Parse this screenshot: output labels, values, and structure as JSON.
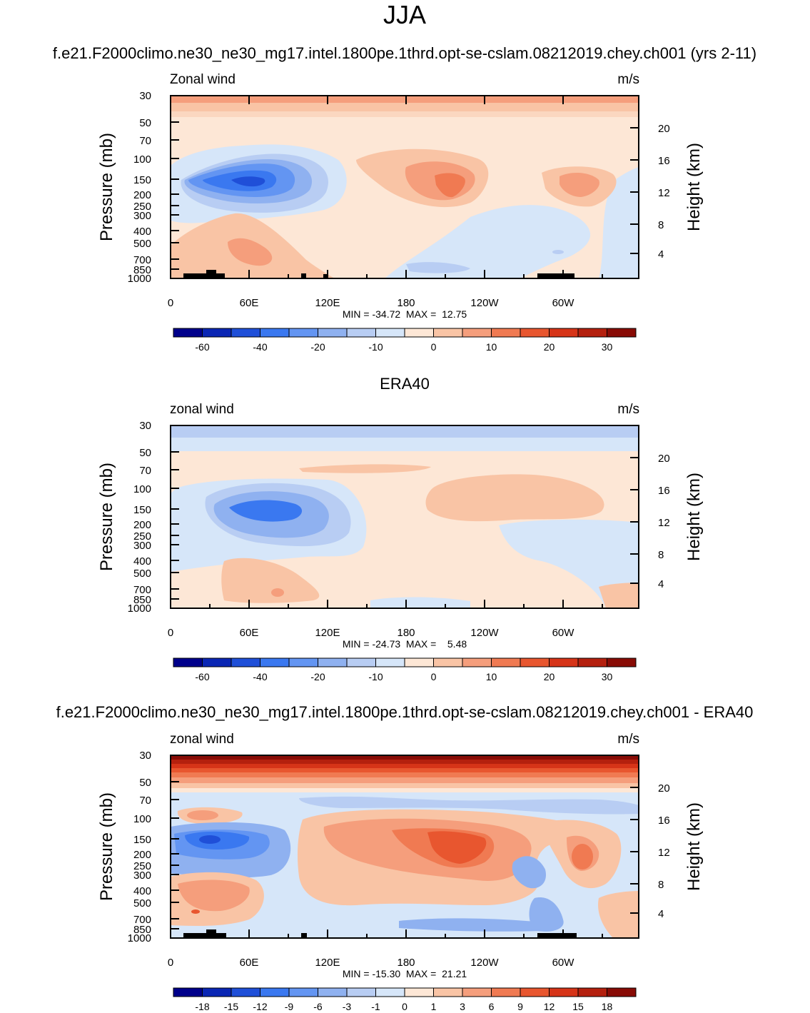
{
  "figure_title": "JJA",
  "colors": {
    "diverging_scale": [
      "#00008b",
      "#0a26b4",
      "#1f4fd8",
      "#3a78f0",
      "#6395f2",
      "#8fb1f0",
      "#b8cdf3",
      "#d6e6f9",
      "#fde7d6",
      "#f9c4a5",
      "#f59e7c",
      "#f07a52",
      "#e8562f",
      "#d63418",
      "#b4200e",
      "#880b05"
    ]
  },
  "chart_data": [
    {
      "type": "heatmap",
      "panel_title": "f.e21.F2000climo.ne30_ne30_mg17.intel.1800pe.1thrd.opt-se-cslam.08212019.chey.ch001 (yrs 2-11)",
      "left_string": "Zonal wind",
      "right_string": "m/s",
      "ylabel": "Pressure (mb)",
      "ylabel_right": "Height (km)",
      "x_ticks": [
        "0",
        "60E",
        "120E",
        "180",
        "120W",
        "60W"
      ],
      "y_ticks": [
        "30",
        "50",
        "70",
        "100",
        "150",
        "200",
        "250",
        "300",
        "400",
        "500",
        "700",
        "850",
        "1000"
      ],
      "y_right_ticks": [
        "20",
        "16",
        "12",
        "8",
        "4"
      ],
      "stats_text": "MIN = -34.72  MAX =  12.75",
      "min": -34.72,
      "max": 12.75,
      "colorbar_labels": [
        "-60",
        "-40",
        "-20",
        "-10",
        "0",
        "10",
        "20",
        "30"
      ],
      "features": [
        {
          "name": "easterly jet core",
          "lon": 60,
          "p": 150,
          "value": -34.72
        },
        {
          "name": "westerly maximum",
          "lon": 202,
          "p": 180,
          "value": 12.75
        },
        {
          "name": "westerly maximum",
          "lon": 305,
          "p": 170,
          "value": 10
        }
      ]
    },
    {
      "type": "heatmap",
      "panel_title": "ERA40",
      "left_string": "zonal wind",
      "right_string": "m/s",
      "ylabel": "Pressure (mb)",
      "ylabel_right": "Height (km)",
      "x_ticks": [
        "0",
        "60E",
        "120E",
        "180",
        "120W",
        "60W"
      ],
      "y_ticks": [
        "30",
        "50",
        "70",
        "100",
        "150",
        "200",
        "250",
        "300",
        "400",
        "500",
        "700",
        "850",
        "1000"
      ],
      "y_right_ticks": [
        "20",
        "16",
        "12",
        "8",
        "4"
      ],
      "stats_text": "MIN = -24.73  MAX =    5.48",
      "min": -24.73,
      "max": 5.48,
      "colorbar_labels": [
        "-60",
        "-40",
        "-20",
        "-10",
        "0",
        "10",
        "20",
        "30"
      ],
      "features": [
        {
          "name": "easterly jet core",
          "lon": 80,
          "p": 150,
          "value": -24.73
        },
        {
          "name": "westerly maximum",
          "lon": 250,
          "p": 130,
          "value": 5.48
        }
      ]
    },
    {
      "type": "heatmap",
      "panel_title": "f.e21.F2000climo.ne30_ne30_mg17.intel.1800pe.1thrd.opt-se-cslam.08212019.chey.ch001 - ERA40",
      "left_string": "zonal wind",
      "right_string": "m/s",
      "ylabel": "Pressure (mb)",
      "ylabel_right": "Height (km)",
      "x_ticks": [
        "0",
        "60E",
        "120E",
        "180",
        "120W",
        "60W"
      ],
      "y_ticks": [
        "30",
        "50",
        "70",
        "100",
        "150",
        "200",
        "250",
        "300",
        "400",
        "500",
        "700",
        "850",
        "1000"
      ],
      "y_right_ticks": [
        "20",
        "16",
        "12",
        "8",
        "4"
      ],
      "stats_text": "MIN = -15.30  MAX =  21.21",
      "min": -15.3,
      "max": 21.21,
      "colorbar_labels": [
        "-18",
        "-15",
        "-12",
        "-9",
        "-6",
        "-3",
        "-1",
        "0",
        "1",
        "3",
        "6",
        "9",
        "12",
        "15",
        "18"
      ],
      "features": [
        {
          "name": "model-minus-obs top level",
          "lon": 180,
          "p": 30,
          "value": 21.21
        },
        {
          "name": "negative difference core",
          "lon": 30,
          "p": 150,
          "value": -15.3
        },
        {
          "name": "positive difference core",
          "lon": 210,
          "p": 180,
          "value": 11
        }
      ]
    }
  ]
}
